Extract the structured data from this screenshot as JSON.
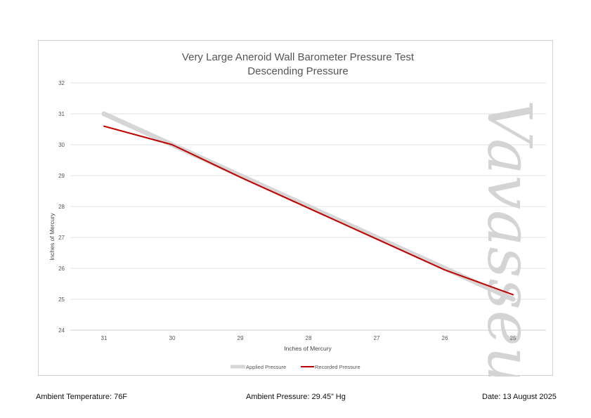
{
  "chart_data": {
    "type": "line",
    "title": "Very Large Aneroid Wall Barometer Pressure Test",
    "subtitle": "Descending Pressure",
    "xlabel": "Inches of Mercury",
    "ylabel": "Inches of Mercury",
    "categories": [
      "31",
      "30",
      "29",
      "28",
      "27",
      "26",
      "25"
    ],
    "y_ticks": [
      "24",
      "25",
      "26",
      "27",
      "28",
      "29",
      "30",
      "31",
      "32"
    ],
    "ylim": [
      24,
      32
    ],
    "grid": true,
    "legend_position": "bottom",
    "series": [
      {
        "name": "Applied Pressure",
        "values": [
          31.0,
          30.0,
          29.0,
          28.0,
          27.0,
          26.0,
          25.0
        ],
        "color": "#d6d6d6"
      },
      {
        "name": "Recorded Pressure",
        "values": [
          30.6,
          30.0,
          28.95,
          27.95,
          26.95,
          25.95,
          25.15
        ],
        "color": "#c00000"
      }
    ]
  },
  "watermark": {
    "text": "Vavasseur"
  },
  "footer": {
    "temperature": "Ambient Temperature: 76F",
    "pressure": "Ambient Pressure: 29.45” Hg",
    "date": "Date: 13 August 2025"
  }
}
